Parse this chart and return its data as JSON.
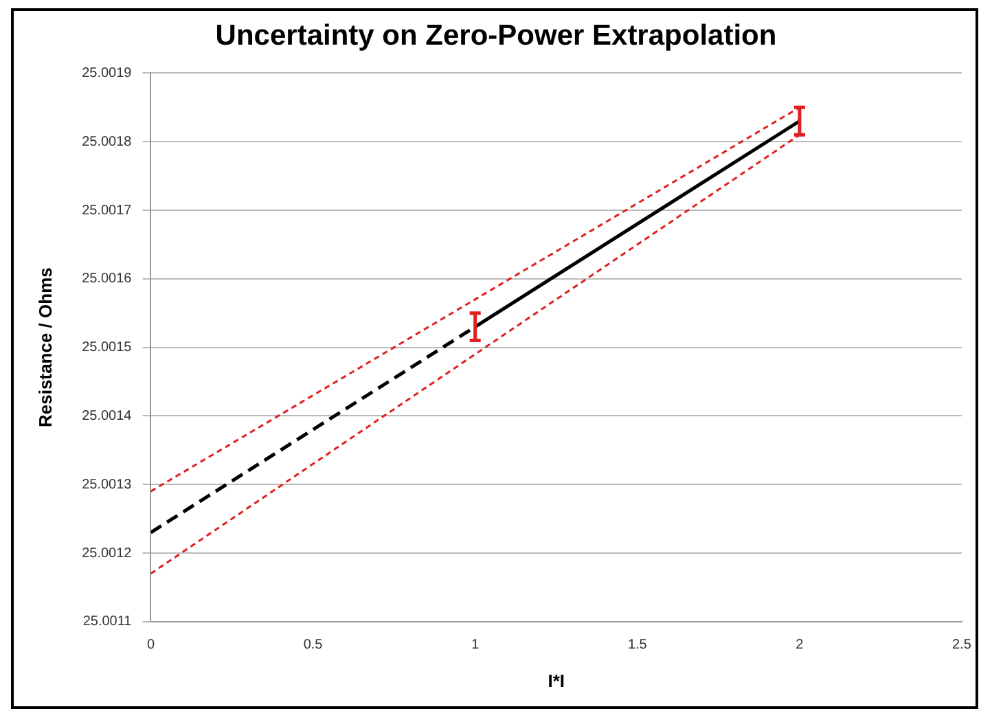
{
  "chart_data": {
    "type": "line",
    "title": "Uncertainty on Zero-Power Extrapolation",
    "xlabel": "I*I",
    "ylabel": "Resistance / Ohms",
    "xlim": [
      0,
      2.5
    ],
    "xticks": [
      0,
      0.5,
      1,
      1.5,
      2,
      2.5
    ],
    "ylim": [
      25.0011,
      25.0019
    ],
    "yticks": [
      25.0011,
      25.0012,
      25.0013,
      25.0014,
      25.0015,
      25.0016,
      25.0017,
      25.0018,
      25.0019
    ],
    "grid": "y",
    "legend": false,
    "marker": "none",
    "series": [
      {
        "color": "#e02020",
        "line_style": "dotted",
        "x": [
          0,
          2
        ],
        "values": [
          25.00129,
          25.00185
        ]
      },
      {
        "color": "#e02020",
        "line_style": "dotted",
        "x": [
          0,
          2
        ],
        "values": [
          25.00117,
          25.00181
        ]
      },
      {
        "color": "#000000",
        "line_style": "dashed",
        "x": [
          0,
          1
        ],
        "values": [
          25.00123,
          25.00153
        ]
      },
      {
        "color": "#000000",
        "line_style": "solid",
        "x": [
          1,
          2
        ],
        "values": [
          25.00153,
          25.00183
        ],
        "errors": [
          [
            25.00151,
            25.00155
          ],
          [
            25.00181,
            25.00185
          ]
        ]
      }
    ]
  }
}
